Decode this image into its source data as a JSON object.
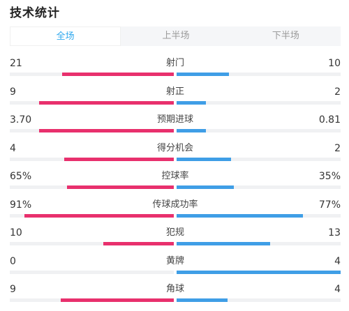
{
  "header": {
    "title": "技术统计"
  },
  "tabs": [
    {
      "label": "全场",
      "active": true
    },
    {
      "label": "上半场",
      "active": false
    },
    {
      "label": "下半场",
      "active": false
    }
  ],
  "colors": {
    "home": "#e8306d",
    "away": "#3f9ee6",
    "active_tab": "#2fa8ee"
  },
  "stats": [
    {
      "label": "射门",
      "home": "21",
      "away": "10",
      "home_frac": 0.68,
      "away_frac": 0.32
    },
    {
      "label": "射正",
      "home": "9",
      "away": "2",
      "home_frac": 0.82,
      "away_frac": 0.18
    },
    {
      "label": "预期进球",
      "home": "3.70",
      "away": "0.81",
      "home_frac": 0.82,
      "away_frac": 0.18
    },
    {
      "label": "得分机会",
      "home": "4",
      "away": "2",
      "home_frac": 0.67,
      "away_frac": 0.33
    },
    {
      "label": "控球率",
      "home": "65%",
      "away": "35%",
      "home_frac": 0.65,
      "away_frac": 0.35
    },
    {
      "label": "传球成功率",
      "home": "91%",
      "away": "77%",
      "home_frac": 0.91,
      "away_frac": 0.77
    },
    {
      "label": "犯规",
      "home": "10",
      "away": "13",
      "home_frac": 0.43,
      "away_frac": 0.57
    },
    {
      "label": "黄牌",
      "home": "0",
      "away": "4",
      "home_frac": 0.0,
      "away_frac": 1.0
    },
    {
      "label": "角球",
      "home": "9",
      "away": "4",
      "home_frac": 0.69,
      "away_frac": 0.31
    }
  ]
}
